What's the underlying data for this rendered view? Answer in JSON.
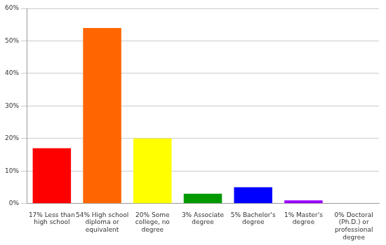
{
  "chart_data": {
    "type": "bar",
    "categories": [
      "17% Less than high school",
      "54% High school diploma or equivalent",
      "20% Some college, no degree",
      "3% Associate degree",
      "5% Bachelor's degree",
      "1% Master's degree",
      "0% Doctoral (Ph.D.) or professional degree"
    ],
    "values": [
      17,
      54,
      20,
      3,
      5,
      1,
      0
    ],
    "colors": [
      "#ff0000",
      "#ff6600",
      "#ffff00",
      "#009900",
      "#0000ff",
      "#9900ff",
      "#ff00ff"
    ],
    "ylim": [
      0,
      60
    ],
    "yticks": [
      {
        "value": 0,
        "label": "0%"
      },
      {
        "value": 10,
        "label": "10%"
      },
      {
        "value": 20,
        "label": "20%"
      },
      {
        "value": 30,
        "label": "30%"
      },
      {
        "value": 40,
        "label": "40%"
      },
      {
        "value": 50,
        "label": "50%"
      },
      {
        "value": 60,
        "label": "60%"
      }
    ],
    "grid": true
  }
}
